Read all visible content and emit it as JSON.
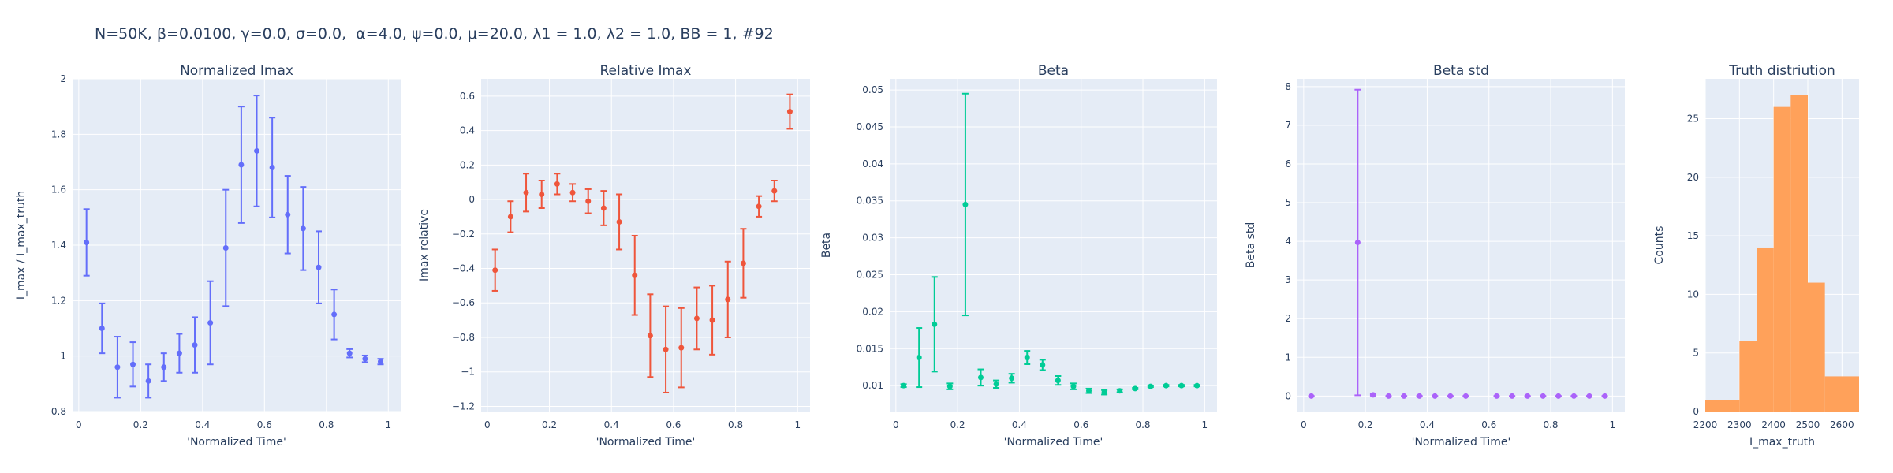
{
  "title": "N=50K, β=0.0100, γ=0.0, σ=0.0,  α=4.0, ψ=0.0, μ=20.0, λ1 = 1.0, λ2 = 1.0, BB = 1, #92",
  "colors": {
    "plot_bg": "#e5ecf6",
    "grid": "#ffffff",
    "text": "#2a3f5f",
    "blue": "#636efa",
    "red": "#ef553b",
    "green": "#00cc96",
    "purple": "#ab63fa",
    "orange": "#ffa15a"
  },
  "chart_data": [
    {
      "type": "scatter",
      "title": "Normalized Imax",
      "xlabel": "'Normalized Time'",
      "ylabel": "I_max / I_max_truth",
      "xlim": [
        -0.02,
        1.04
      ],
      "ylim": [
        0.8,
        2.0
      ],
      "xticks": [
        "0",
        "0.2",
        "0.4",
        "0.6",
        "0.8",
        "1"
      ],
      "xtick_values": [
        0,
        0.2,
        0.4,
        0.6,
        0.8,
        1.0
      ],
      "yticks": [
        "0.8",
        "1",
        "1.2",
        "1.4",
        "1.6",
        "1.8",
        "2"
      ],
      "ytick_values": [
        0.8,
        1.0,
        1.2,
        1.4,
        1.6,
        1.8,
        2.0
      ],
      "color": "blue",
      "x": [
        0.025,
        0.075,
        0.125,
        0.175,
        0.225,
        0.275,
        0.325,
        0.375,
        0.425,
        0.475,
        0.525,
        0.575,
        0.625,
        0.675,
        0.725,
        0.775,
        0.825,
        0.875,
        0.925,
        0.975
      ],
      "y": [
        1.41,
        1.1,
        0.96,
        0.97,
        0.91,
        0.96,
        1.01,
        1.04,
        1.12,
        1.39,
        1.69,
        1.74,
        1.68,
        1.51,
        1.46,
        1.32,
        1.15,
        1.01,
        0.99,
        0.98
      ],
      "err_plus": [
        0.12,
        0.09,
        0.11,
        0.08,
        0.06,
        0.05,
        0.07,
        0.1,
        0.15,
        0.21,
        0.21,
        0.2,
        0.18,
        0.14,
        0.15,
        0.13,
        0.09,
        0.015,
        0.012,
        0.01
      ],
      "err_minus": [
        0.12,
        0.09,
        0.11,
        0.08,
        0.06,
        0.05,
        0.07,
        0.1,
        0.15,
        0.21,
        0.21,
        0.2,
        0.18,
        0.14,
        0.15,
        0.13,
        0.09,
        0.015,
        0.012,
        0.01
      ]
    },
    {
      "type": "scatter",
      "title": "Relative Imax",
      "xlabel": "'Normalized Time'",
      "ylabel": "Imax relative",
      "xlim": [
        -0.02,
        1.04
      ],
      "ylim": [
        -1.23,
        0.7
      ],
      "xticks": [
        "0",
        "0.2",
        "0.4",
        "0.6",
        "0.8",
        "1"
      ],
      "xtick_values": [
        0,
        0.2,
        0.4,
        0.6,
        0.8,
        1.0
      ],
      "yticks": [
        "−1.2",
        "−1",
        "−0.8",
        "−0.6",
        "−0.4",
        "−0.2",
        "0",
        "0.2",
        "0.4",
        "0.6"
      ],
      "ytick_values": [
        -1.2,
        -1.0,
        -0.8,
        -0.6,
        -0.4,
        -0.2,
        0,
        0.2,
        0.4,
        0.6
      ],
      "color": "red",
      "x": [
        0.025,
        0.075,
        0.125,
        0.175,
        0.225,
        0.275,
        0.325,
        0.375,
        0.425,
        0.475,
        0.525,
        0.575,
        0.625,
        0.675,
        0.725,
        0.775,
        0.825,
        0.875,
        0.925,
        0.975
      ],
      "y": [
        -0.41,
        -0.1,
        0.04,
        0.03,
        0.09,
        0.04,
        -0.01,
        -0.05,
        -0.13,
        -0.44,
        -0.79,
        -0.87,
        -0.86,
        -0.69,
        -0.7,
        -0.58,
        -0.37,
        -0.04,
        0.05,
        0.51
      ],
      "err_plus": [
        0.12,
        0.09,
        0.11,
        0.08,
        0.06,
        0.05,
        0.07,
        0.1,
        0.16,
        0.23,
        0.24,
        0.25,
        0.23,
        0.18,
        0.2,
        0.22,
        0.2,
        0.06,
        0.06,
        0.1
      ],
      "err_minus": [
        0.12,
        0.09,
        0.11,
        0.08,
        0.06,
        0.05,
        0.07,
        0.1,
        0.16,
        0.23,
        0.24,
        0.25,
        0.23,
        0.18,
        0.2,
        0.22,
        0.2,
        0.06,
        0.06,
        0.1
      ]
    },
    {
      "type": "scatter",
      "title": "Beta",
      "xlabel": "'Normalized Time'",
      "ylabel": "Beta",
      "xlim": [
        -0.02,
        1.04
      ],
      "ylim": [
        0.0065,
        0.0515
      ],
      "xticks": [
        "0",
        "0.2",
        "0.4",
        "0.6",
        "0.8",
        "1"
      ],
      "xtick_values": [
        0,
        0.2,
        0.4,
        0.6,
        0.8,
        1.0
      ],
      "yticks": [
        "0.01",
        "0.015",
        "0.02",
        "0.025",
        "0.03",
        "0.035",
        "0.04",
        "0.045",
        "0.05"
      ],
      "ytick_values": [
        0.01,
        0.015,
        0.02,
        0.025,
        0.03,
        0.035,
        0.04,
        0.045,
        0.05
      ],
      "color": "green",
      "x": [
        0.025,
        0.075,
        0.125,
        0.175,
        0.225,
        0.275,
        0.325,
        0.375,
        0.425,
        0.475,
        0.525,
        0.575,
        0.625,
        0.675,
        0.725,
        0.775,
        0.825,
        0.875,
        0.925,
        0.975
      ],
      "y": [
        0.01,
        0.0138,
        0.0183,
        0.0099,
        0.0345,
        0.0111,
        0.0102,
        0.011,
        0.0138,
        0.0128,
        0.0107,
        0.0099,
        0.0093,
        0.0091,
        0.0093,
        0.0096,
        0.0099,
        0.01,
        0.01,
        0.01
      ],
      "err_plus": [
        0.0002,
        0.004,
        0.0064,
        0.0004,
        0.015,
        0.0011,
        0.0005,
        0.0006,
        0.0009,
        0.0007,
        0.0006,
        0.0004,
        0.0003,
        0.0003,
        0.0002,
        0.0001,
        0.0001,
        0.0001,
        0.0001,
        0.0001
      ],
      "err_minus": [
        0.0002,
        0.004,
        0.0064,
        0.0004,
        0.015,
        0.0011,
        0.0005,
        0.0006,
        0.0009,
        0.0007,
        0.0006,
        0.0004,
        0.0003,
        0.0003,
        0.0002,
        0.0001,
        0.0001,
        0.0001,
        0.0001,
        0.0001
      ]
    },
    {
      "type": "scatter",
      "title": "Beta std",
      "xlabel": "'Normalized Time'",
      "ylabel": "Beta std",
      "xlim": [
        -0.02,
        1.04
      ],
      "ylim": [
        -0.4,
        8.2
      ],
      "xticks": [
        "0",
        "0.2",
        "0.4",
        "0.6",
        "0.8",
        "1"
      ],
      "xtick_values": [
        0,
        0.2,
        0.4,
        0.6,
        0.8,
        1.0
      ],
      "yticks": [
        "0",
        "1",
        "2",
        "3",
        "4",
        "5",
        "6",
        "7",
        "8"
      ],
      "ytick_values": [
        0,
        1,
        2,
        3,
        4,
        5,
        6,
        7,
        8
      ],
      "color": "purple",
      "x": [
        0.025,
        0.175,
        0.225,
        0.275,
        0.325,
        0.375,
        0.425,
        0.475,
        0.525,
        0.625,
        0.675,
        0.725,
        0.775,
        0.825,
        0.875,
        0.925,
        0.975
      ],
      "y": [
        0.0,
        3.97,
        0.03,
        0.0,
        0.0,
        0.0,
        0.0,
        0.0,
        0.0,
        0.0,
        0.0,
        0.0,
        0.0,
        0.0,
        0.0,
        0.0,
        0.0
      ],
      "err_plus": [
        0.0,
        3.95,
        0.02,
        0.0,
        0.0,
        0.0,
        0.0,
        0.0,
        0.0,
        0.0,
        0.0,
        0.0,
        0.0,
        0.0,
        0.0,
        0.0,
        0.0
      ],
      "err_minus": [
        0.0,
        3.95,
        0.02,
        0.0,
        0.0,
        0.0,
        0.0,
        0.0,
        0.0,
        0.0,
        0.0,
        0.0,
        0.0,
        0.0,
        0.0,
        0.0,
        0.0
      ]
    },
    {
      "type": "bar",
      "title": "Truth distriution",
      "xlabel": "I_max_truth",
      "ylabel": "Counts",
      "xlim": [
        2200,
        2650
      ],
      "ylim": [
        0,
        28.4
      ],
      "xticks": [
        "2200",
        "2300",
        "2400",
        "2500",
        "2600"
      ],
      "xtick_values": [
        2200,
        2300,
        2400,
        2500,
        2600
      ],
      "yticks": [
        "0",
        "5",
        "10",
        "15",
        "20",
        "25"
      ],
      "ytick_values": [
        0,
        5,
        10,
        15,
        20,
        25
      ],
      "color": "orange",
      "bin_edges": [
        2200,
        2300,
        2350,
        2400,
        2450,
        2500,
        2550,
        2650
      ],
      "values": [
        1,
        6,
        14,
        26,
        27,
        11,
        3
      ]
    }
  ]
}
